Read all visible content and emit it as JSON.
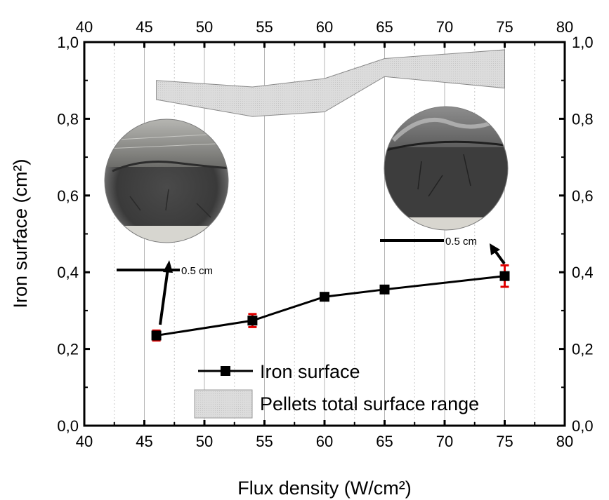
{
  "chart_data": {
    "type": "line",
    "x_axis": {
      "label": "Flux density (W/cm²)",
      "range": [
        40,
        80
      ],
      "ticks": [
        "40",
        "45",
        "50",
        "55",
        "60",
        "65",
        "70",
        "75",
        "80"
      ]
    },
    "y_axis": {
      "label": "Iron surface (cm²)",
      "range": [
        0,
        1.0
      ],
      "ticks": [
        "0,0",
        "0,2",
        "0,4",
        "0,6",
        "0,8",
        "1,0"
      ]
    },
    "top_axis_ticks": [
      "40",
      "45",
      "50",
      "55",
      "60",
      "65",
      "70",
      "75",
      "80"
    ],
    "right_axis_ticks": [
      "0,0",
      "0,2",
      "0,4",
      "0,6",
      "0,8",
      "1,0"
    ],
    "series": [
      {
        "name": "Iron surface",
        "color": "#000000",
        "error_color": "#e00000",
        "x": [
          46,
          54,
          60,
          65,
          75
        ],
        "y": [
          0.235,
          0.274,
          0.336,
          0.355,
          0.39
        ],
        "error": [
          0.013,
          0.017,
          0.009,
          0.008,
          0.028
        ]
      }
    ],
    "band": {
      "name": "Pellets total surface range",
      "color": "#d9d9d9",
      "x": [
        46,
        54,
        60,
        65,
        75
      ],
      "lower": [
        0.85,
        0.806,
        0.818,
        0.91,
        0.88
      ],
      "upper": [
        0.9,
        0.883,
        0.905,
        0.957,
        0.98
      ]
    },
    "grid": "vertical-major-and-minor",
    "legend": {
      "placement": "bottom-right",
      "entries": [
        "Iron surface",
        "Pellets total surface range"
      ]
    },
    "annotations": [
      {
        "text": "0.5 cm",
        "points_to_x": 46
      },
      {
        "text": "0.5 cm",
        "points_to_x": 75
      }
    ],
    "insets": [
      {
        "name": "pellet-photo-left",
        "points_to_x": 46
      },
      {
        "name": "pellet-photo-right",
        "points_to_x": 75
      }
    ]
  }
}
